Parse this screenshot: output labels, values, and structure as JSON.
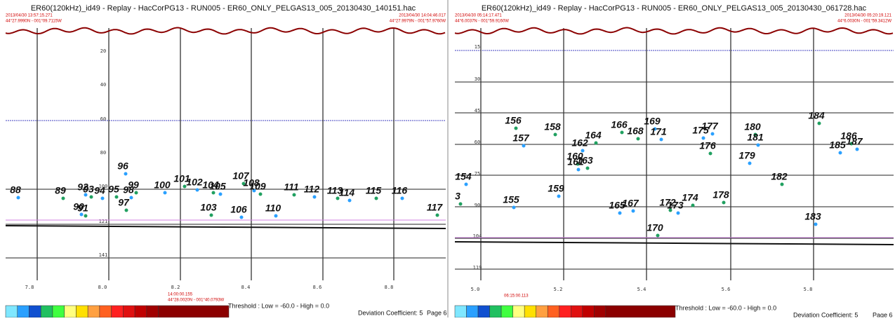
{
  "panels": [
    {
      "title": "ER60(120kHz)_id49 - Replay - HacCorPG13 - RUN005 - ER60_ONLY_PELGAS13_005_20130430_140151.hac",
      "start_time": "2013/04/30 13:57:15.271",
      "start_position": "44°27.9990N - 001°09.7115W",
      "end_time": "2013/04/30 14:04:46.017",
      "end_position": "44°27.9979N - 001°57.9760W",
      "depth_labels": [
        "20",
        "40",
        "60",
        "80",
        "100",
        "121",
        "141"
      ],
      "distance_labels": [
        "7.8",
        "8.0",
        "8.2",
        "8.4",
        "8.6",
        "8.8"
      ],
      "cursor_time": "14:00:00.155",
      "cursor_position": "44°28.0020N - 001°40.0793W",
      "schools": [
        "88",
        "89",
        "92",
        "93",
        "94",
        "95",
        "96",
        "97",
        "98",
        "99",
        "90",
        "91",
        "100",
        "101",
        "102",
        "104",
        "105",
        "103",
        "106",
        "107",
        "108",
        "109",
        "110",
        "111",
        "112",
        "113",
        "114",
        "115",
        "116",
        "117"
      ],
      "threshold": "Threshold : Low = -60.0 - High = 0.0",
      "deviation": "Deviation Coefficient: 5",
      "page": "Page 6"
    },
    {
      "title": "ER60(120kHz)_id49 - Replay - HacCorPG13 - RUN005 - ER60_ONLY_PELGAS13_005_20130430_061728.hac",
      "start_time": "2013/04/30 05:14:17.471",
      "start_position": "44°6.0037N - 001°59.9160W",
      "end_time": "2013/04/30 05:20:19.121",
      "end_position": "44°6.0030N - 001°59.3412W",
      "depth_labels": [
        "15",
        "30",
        "45",
        "60",
        "75",
        "90",
        "104",
        "119"
      ],
      "distance_labels": [
        "5.0",
        "5.2",
        "5.4",
        "5.6",
        "5.8"
      ],
      "cursor_time": "06:15:00.113",
      "schools": [
        "154",
        "3",
        "155",
        "156",
        "157",
        "158",
        "159",
        "160",
        "161",
        "163",
        "162",
        "164",
        "165",
        "166",
        "167",
        "168",
        "169",
        "170",
        "171",
        "172",
        "173",
        "174",
        "175",
        "176",
        "177",
        "178",
        "179",
        "180",
        "181",
        "182",
        "183",
        "184",
        "185",
        "186",
        "187"
      ],
      "threshold": "Threshold : Low = -60.0 - High = 0.0",
      "deviation": "Deviation Coefficient: 5",
      "page": "Page 6"
    }
  ]
}
